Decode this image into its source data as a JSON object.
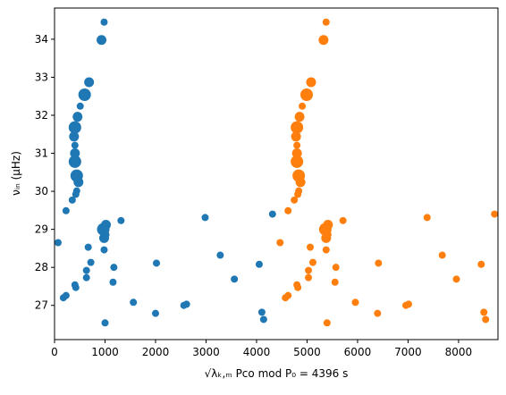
{
  "chart_data": {
    "type": "scatter",
    "x_label": "√λₖ,ₘ Pco mod P₀ = 4396 s",
    "y_label": "νᵢₙ (μHz)",
    "xlim": [
      0,
      8780
    ],
    "ylim": [
      26.1,
      34.82
    ],
    "xticks": [
      0,
      1000,
      2000,
      3000,
      4000,
      5000,
      6000,
      7000,
      8000
    ],
    "yticks": [
      27,
      28,
      29,
      30,
      31,
      32,
      33,
      34
    ],
    "series": [
      {
        "color": "#1f77b4",
        "x": [
          982,
          930,
          684,
          596,
          509,
          456,
          404,
          386,
          404,
          404,
          404,
          439,
          474,
          439,
          421,
          351,
          228,
          1018,
          965,
          1316,
          2982,
          4316,
          70,
          982,
          1018,
          667,
          982,
          3281,
          2018,
          719,
          4053,
          1175,
          632,
          404,
          632,
          421,
          1158,
          3561,
          1561,
          2000,
          2561,
          2614,
          175,
          228,
          4105,
          4140,
          1000
        ],
        "values": [
          34.45,
          33.98,
          32.87,
          32.54,
          32.24,
          31.96,
          31.68,
          31.44,
          31.21,
          31.0,
          30.78,
          30.41,
          30.24,
          30.01,
          29.92,
          29.77,
          29.49,
          29.12,
          29.0,
          29.23,
          29.31,
          29.4,
          28.65,
          28.77,
          28.86,
          28.53,
          28.46,
          28.32,
          28.11,
          28.13,
          28.08,
          28.0,
          27.92,
          27.54,
          27.73,
          27.47,
          27.61,
          27.69,
          27.08,
          26.79,
          27.0,
          27.03,
          27.2,
          27.26,
          26.82,
          26.63,
          26.54
        ],
        "sizes": [
          1,
          2,
          2,
          3,
          1,
          2,
          3,
          2,
          1,
          2,
          3,
          3,
          2,
          1,
          1,
          1,
          1,
          2,
          3,
          1,
          1,
          1,
          1,
          2,
          1,
          1,
          1,
          1,
          1,
          1,
          1,
          1,
          1,
          1,
          1,
          1,
          1,
          1,
          1,
          1,
          1,
          1,
          1,
          1,
          1,
          1,
          1
        ]
      },
      {
        "color": "#ff7f0e",
        "x": [
          5378,
          5326,
          5080,
          4992,
          4905,
          4852,
          4800,
          4782,
          4800,
          4800,
          4800,
          4835,
          4870,
          4835,
          4817,
          4747,
          4624,
          5414,
          5361,
          5712,
          7378,
          8712,
          4466,
          5378,
          5414,
          5063,
          5378,
          7677,
          6414,
          5115,
          8449,
          5571,
          5028,
          4800,
          5028,
          4817,
          5554,
          7957,
          5957,
          6396,
          6957,
          7010,
          4571,
          4624,
          8501,
          8536,
          5396
        ],
        "values": [
          34.45,
          33.98,
          32.87,
          32.54,
          32.24,
          31.96,
          31.68,
          31.44,
          31.21,
          31.0,
          30.78,
          30.41,
          30.24,
          30.01,
          29.92,
          29.77,
          29.49,
          29.12,
          29.0,
          29.23,
          29.31,
          29.4,
          28.65,
          28.77,
          28.86,
          28.53,
          28.46,
          28.32,
          28.11,
          28.13,
          28.08,
          28.0,
          27.92,
          27.54,
          27.73,
          27.47,
          27.61,
          27.69,
          27.08,
          26.79,
          27.0,
          27.03,
          27.2,
          27.26,
          26.82,
          26.63,
          26.54
        ],
        "sizes": [
          1,
          2,
          2,
          3,
          1,
          2,
          3,
          2,
          1,
          2,
          3,
          3,
          2,
          1,
          1,
          1,
          1,
          2,
          3,
          1,
          1,
          1,
          1,
          2,
          1,
          1,
          1,
          1,
          1,
          1,
          1,
          1,
          1,
          1,
          1,
          1,
          1,
          1,
          1,
          1,
          1,
          1,
          1,
          1,
          1,
          1,
          1
        ]
      }
    ]
  }
}
